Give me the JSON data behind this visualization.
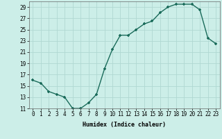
{
  "x": [
    0,
    1,
    2,
    3,
    4,
    5,
    6,
    7,
    8,
    9,
    10,
    11,
    12,
    13,
    14,
    15,
    16,
    17,
    18,
    19,
    20,
    21,
    22,
    23
  ],
  "y": [
    16.0,
    15.5,
    14.0,
    13.5,
    13.0,
    11.0,
    11.0,
    12.0,
    13.5,
    18.0,
    21.5,
    24.0,
    24.0,
    25.0,
    26.0,
    26.5,
    28.0,
    29.0,
    29.5,
    29.5,
    29.5,
    28.5,
    23.5,
    22.5
  ],
  "xlabel": "Humidex (Indice chaleur)",
  "ylim": [
    11,
    30
  ],
  "xlim": [
    -0.5,
    23.5
  ],
  "yticks": [
    11,
    13,
    15,
    17,
    19,
    21,
    23,
    25,
    27,
    29
  ],
  "xticks": [
    0,
    1,
    2,
    3,
    4,
    5,
    6,
    7,
    8,
    9,
    10,
    11,
    12,
    13,
    14,
    15,
    16,
    17,
    18,
    19,
    20,
    21,
    22,
    23
  ],
  "xtick_labels": [
    "0",
    "1",
    "2",
    "3",
    "4",
    "5",
    "6",
    "7",
    "8",
    "9",
    "10",
    "11",
    "12",
    "13",
    "14",
    "15",
    "16",
    "17",
    "18",
    "19",
    "20",
    "21",
    "22",
    "23"
  ],
  "ytick_labels": [
    "11",
    "13",
    "15",
    "17",
    "19",
    "21",
    "23",
    "25",
    "27",
    "29"
  ],
  "line_color": "#1a6b5a",
  "marker_color": "#1a6b5a",
  "bg_color": "#cceee8",
  "grid_color": "#b0d8d2",
  "fig_bg": "#cceee8",
  "xlabel_fontsize": 6.0,
  "tick_fontsize": 5.5
}
